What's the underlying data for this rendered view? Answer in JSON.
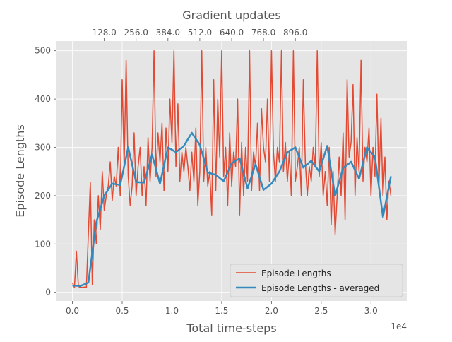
{
  "chart_data": {
    "type": "line",
    "x_axis": {
      "label": "Total time-steps",
      "lim": [
        -1600,
        33600
      ],
      "ticks": [
        0,
        5000,
        10000,
        15000,
        20000,
        25000,
        30000
      ],
      "tick_labels": [
        "0.0",
        "0.5",
        "1.0",
        "1.5",
        "2.0",
        "2.5",
        "3.0"
      ],
      "offset_label": "1e4"
    },
    "secondary_x_axis": {
      "label": "Gradient updates",
      "ticks": [
        128,
        256,
        384,
        512,
        640,
        768,
        896
      ],
      "tick_labels": [
        "128.0",
        "256.0",
        "384.0",
        "512.0",
        "640.0",
        "768.0",
        "896.0"
      ],
      "steps_per_update": 25
    },
    "y_axis": {
      "label": "Episode Lengths",
      "lim": [
        -18,
        520
      ],
      "ticks": [
        0,
        100,
        200,
        300,
        400,
        500
      ],
      "tick_labels": [
        "0",
        "100",
        "200",
        "300",
        "400",
        "500"
      ]
    },
    "grid": true,
    "legend_position": "lower-right",
    "colors": {
      "raw": "#e24a33",
      "averaged": "#348abd",
      "plot_bg": "#e5e5e5",
      "grid": "#ffffff",
      "text": "#555555"
    },
    "series": [
      {
        "name": "Episode Lengths",
        "kind": "raw",
        "x": [
          0,
          200,
          400,
          600,
          800,
          1000,
          1200,
          1400,
          1600,
          1800,
          2000,
          2200,
          2400,
          2600,
          2800,
          3000,
          3200,
          3400,
          3600,
          3800,
          4000,
          4200,
          4400,
          4600,
          4800,
          5000,
          5200,
          5400,
          5600,
          5800,
          6000,
          6200,
          6400,
          6600,
          6800,
          7000,
          7200,
          7400,
          7600,
          7800,
          8000,
          8200,
          8400,
          8600,
          8800,
          9000,
          9200,
          9400,
          9600,
          9800,
          10000,
          10200,
          10400,
          10600,
          10800,
          11000,
          11200,
          11400,
          11600,
          11800,
          12000,
          12200,
          12400,
          12600,
          12800,
          13000,
          13200,
          13400,
          13600,
          13800,
          14000,
          14200,
          14400,
          14600,
          14800,
          15000,
          15200,
          15400,
          15600,
          15800,
          16000,
          16200,
          16400,
          16600,
          16800,
          17000,
          17200,
          17400,
          17600,
          17800,
          18000,
          18200,
          18400,
          18600,
          18800,
          19000,
          19200,
          19400,
          19600,
          19800,
          20000,
          20200,
          20400,
          20600,
          20800,
          21000,
          21200,
          21400,
          21600,
          21800,
          22000,
          22200,
          22400,
          22600,
          22800,
          23000,
          23200,
          23400,
          23600,
          23800,
          24000,
          24200,
          24400,
          24600,
          24800,
          25000,
          25200,
          25400,
          25600,
          25800,
          26000,
          26200,
          26400,
          26600,
          26800,
          27000,
          27200,
          27400,
          27600,
          27800,
          28000,
          28200,
          28400,
          28600,
          28800,
          29000,
          29200,
          29400,
          29600,
          29800,
          30000,
          30200,
          30400,
          30600,
          30800,
          31000,
          31200,
          31400,
          31600,
          31800,
          32000
        ],
        "y": [
          20,
          10,
          85,
          12,
          10,
          10,
          11,
          10,
          120,
          228,
          15,
          150,
          100,
          200,
          130,
          250,
          170,
          200,
          220,
          270,
          190,
          240,
          220,
          300,
          200,
          440,
          260,
          480,
          240,
          180,
          220,
          330,
          200,
          260,
          300,
          200,
          260,
          180,
          320,
          230,
          300,
          500,
          240,
          330,
          270,
          350,
          210,
          340,
          250,
          400,
          310,
          500,
          260,
          390,
          230,
          290,
          250,
          300,
          260,
          210,
          290,
          230,
          340,
          180,
          250,
          500,
          230,
          300,
          220,
          250,
          160,
          440,
          210,
          400,
          280,
          500,
          240,
          300,
          180,
          330,
          220,
          290,
          260,
          400,
          160,
          310,
          200,
          300,
          230,
          500,
          210,
          290,
          260,
          350,
          210,
          380,
          300,
          270,
          400,
          230,
          500,
          290,
          230,
          300,
          270,
          500,
          250,
          310,
          230,
          290,
          200,
          500,
          230,
          260,
          300,
          200,
          440,
          270,
          200,
          260,
          230,
          300,
          260,
          500,
          240,
          310,
          200,
          250,
          180,
          300,
          140,
          250,
          120,
          200,
          280,
          200,
          330,
          150,
          440,
          280,
          310,
          430,
          200,
          320,
          250,
          480,
          230,
          300,
          270,
          340,
          200,
          300,
          240,
          410,
          220,
          360,
          200,
          280,
          150,
          230,
          200
        ]
      },
      {
        "name": "Episode Lengths - averaged",
        "kind": "averaged",
        "x": [
          0,
          800,
          1600,
          2400,
          3200,
          4000,
          4800,
          5600,
          6400,
          7200,
          8000,
          8800,
          9600,
          10400,
          11200,
          12000,
          12800,
          13600,
          14400,
          15200,
          16000,
          16800,
          17600,
          18400,
          19200,
          20000,
          20800,
          21600,
          22400,
          23200,
          24000,
          24800,
          25600,
          26400,
          27200,
          28000,
          28800,
          29600,
          30400,
          31200,
          32000
        ],
        "y": [
          14,
          13,
          20,
          145,
          200,
          225,
          222,
          300,
          228,
          227,
          285,
          225,
          300,
          290,
          303,
          330,
          305,
          248,
          243,
          230,
          267,
          277,
          215,
          265,
          212,
          225,
          250,
          290,
          300,
          258,
          272,
          250,
          303,
          200,
          257,
          270,
          235,
          300,
          280,
          156,
          240
        ]
      }
    ]
  }
}
